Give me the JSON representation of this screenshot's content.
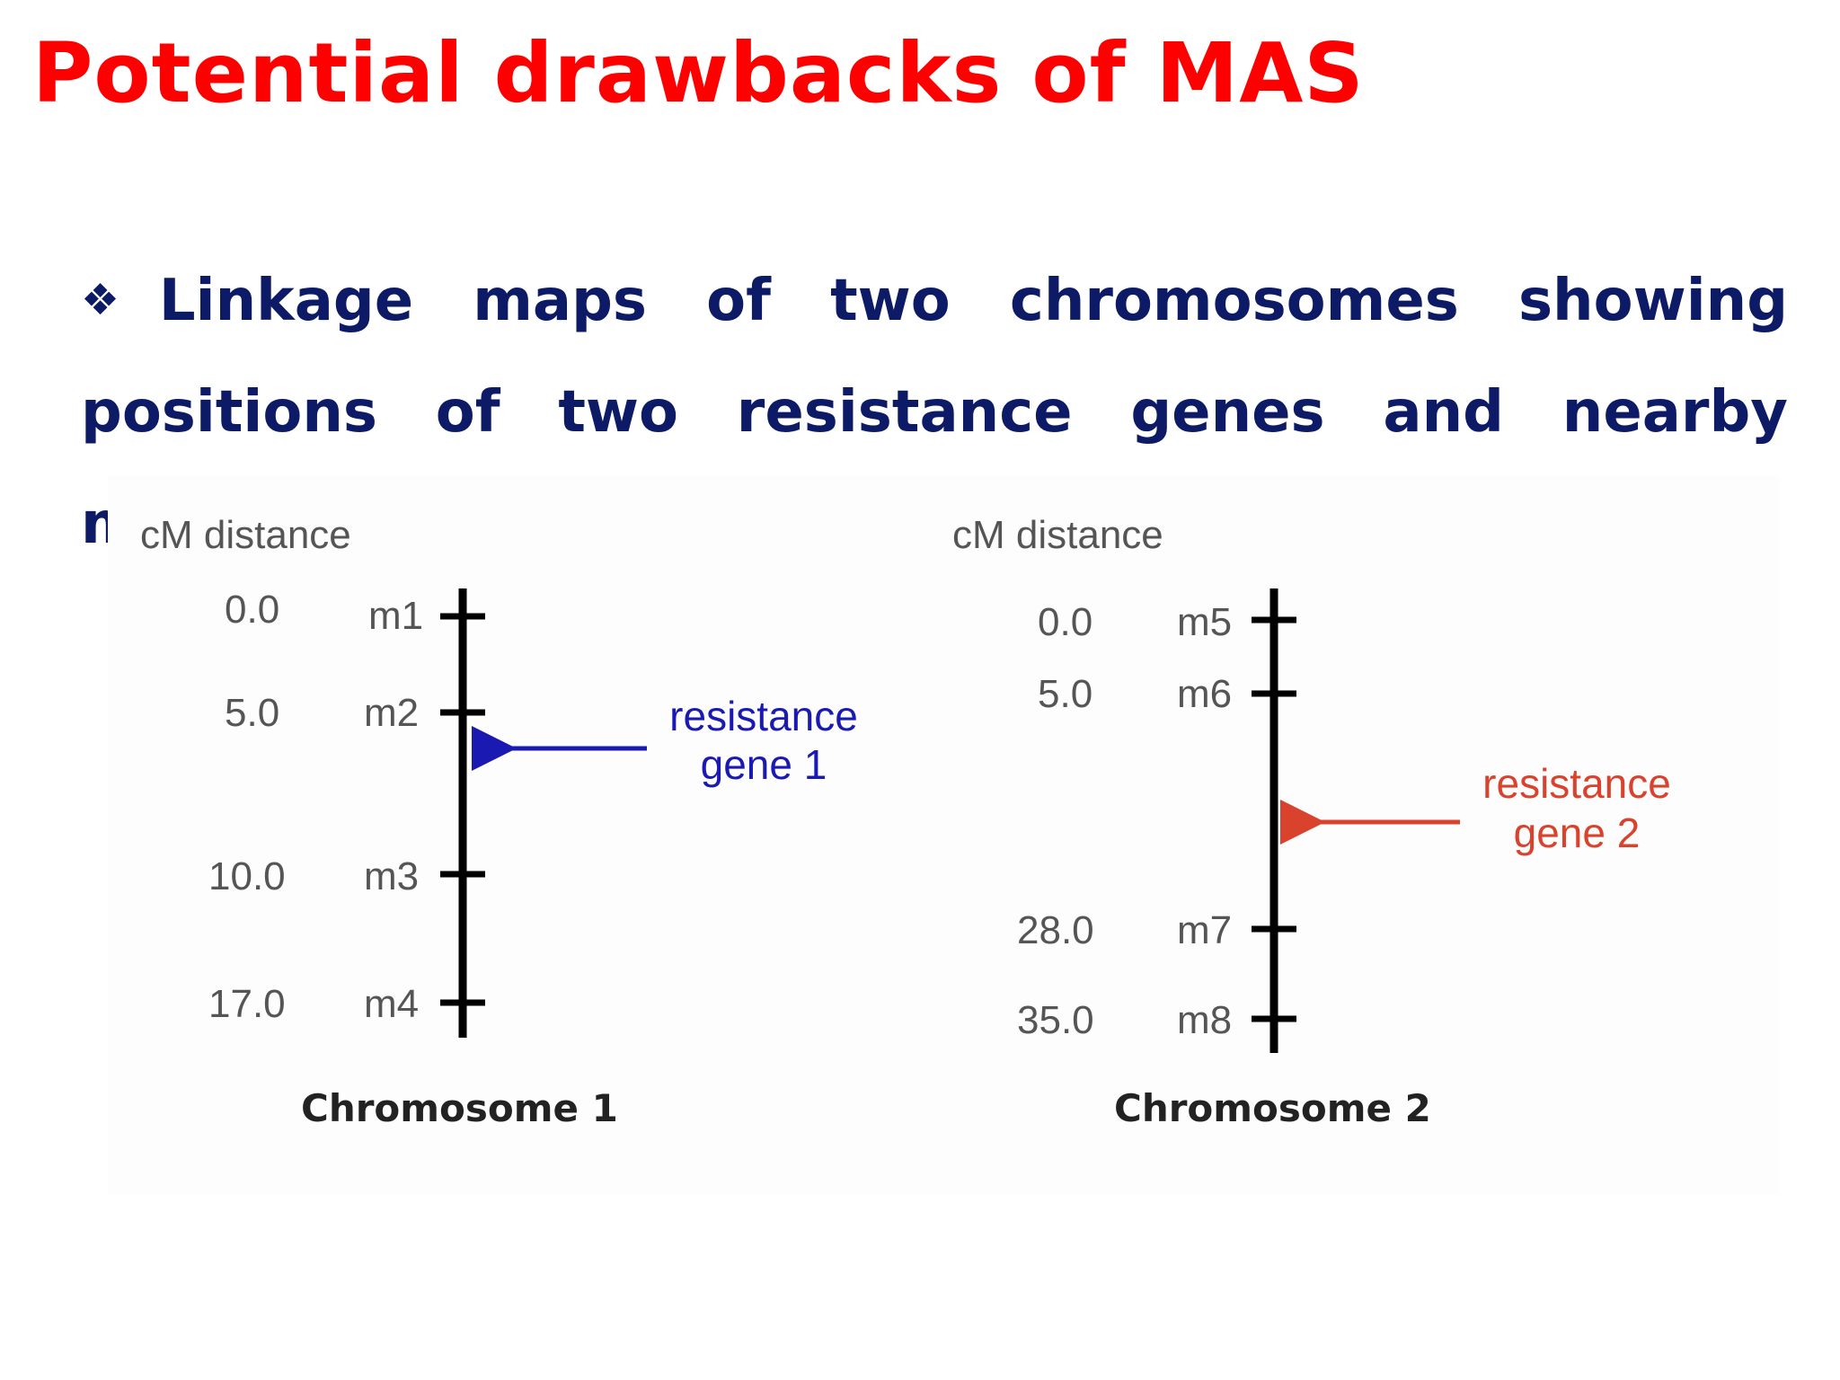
{
  "slide": {
    "title": "Potential drawbacks of MAS",
    "bullet_marker": "❖",
    "bullet_text": "Linkage maps of two chromosomes showing positions of two resistance genes and nearby markers."
  },
  "colors": {
    "title": "#ff0000",
    "bullet": "#0d1a66",
    "gene1": "#1a1ab3",
    "gene2": "#d9432e",
    "map_text": "#555555"
  },
  "chromosome1": {
    "axis_label": "cM distance",
    "name": "Chromosome 1",
    "markers": [
      {
        "distance": "0.0",
        "name": "m1"
      },
      {
        "distance": "5.0",
        "name": "m2"
      },
      {
        "distance": "10.0",
        "name": "m3"
      },
      {
        "distance": "17.0",
        "name": "m4"
      }
    ],
    "gene_label_line1": "resistance",
    "gene_label_line2": "gene 1"
  },
  "chromosome2": {
    "axis_label": "cM distance",
    "name": "Chromosome 2",
    "markers": [
      {
        "distance": "0.0",
        "name": "m5"
      },
      {
        "distance": "5.0",
        "name": "m6"
      },
      {
        "distance": "28.0",
        "name": "m7"
      },
      {
        "distance": "35.0",
        "name": "m8"
      }
    ],
    "gene_label_line1": "resistance",
    "gene_label_line2": "gene 2"
  }
}
